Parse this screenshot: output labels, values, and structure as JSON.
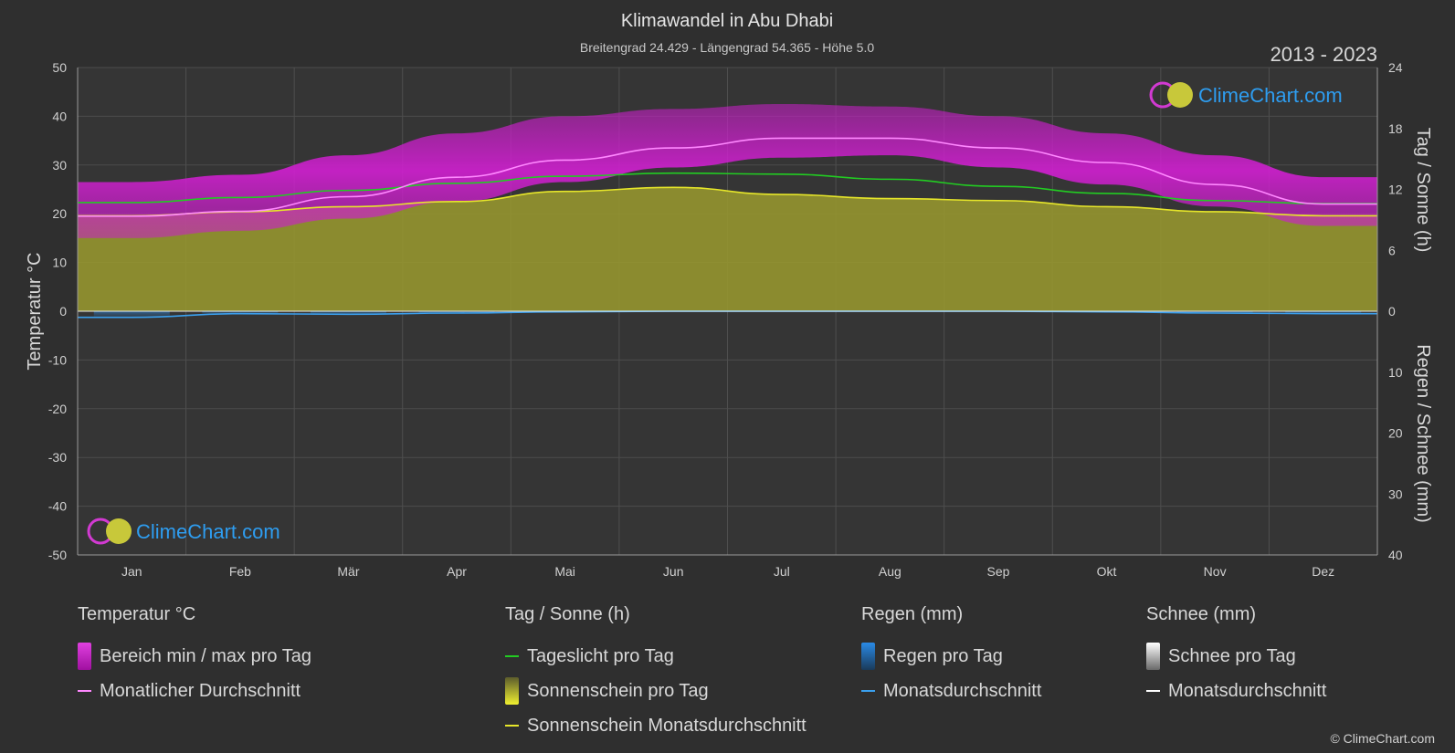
{
  "header": {
    "title": "Klimawandel in Abu Dhabi",
    "subtitle": "Breitengrad 24.429 - Längengrad 54.365 - Höhe 5.0",
    "years": "2013 - 2023"
  },
  "watermark": {
    "brand": "ClimeChart.com"
  },
  "copyright": "© ClimeChart.com",
  "colors": {
    "background": "#2f2f2f",
    "plot_background": "#353535",
    "temp_range": "#d21fd2",
    "temp_avg": "#ff88ff",
    "daylight": "#22cc22",
    "sunshine_fill": "#9a9a2e",
    "sunshine_avg": "#e6e62a",
    "rain": "#1e6fbf",
    "rain_avg": "#3aa0ee",
    "snow_avg": "#ffffff",
    "brand_text": "#2e9df0"
  },
  "chart_data": {
    "type": "line",
    "categories": [
      "Jan",
      "Feb",
      "Mär",
      "Apr",
      "Mai",
      "Jun",
      "Jul",
      "Aug",
      "Sep",
      "Okt",
      "Nov",
      "Dez"
    ],
    "axes": {
      "left": {
        "label": "Temperatur °C",
        "ylim": [
          -50,
          50
        ],
        "ticks": [
          50,
          40,
          30,
          20,
          10,
          0,
          -10,
          -20,
          -30,
          -40,
          -50
        ]
      },
      "right_top": {
        "label": "Tag / Sonne (h)",
        "ylim": [
          0,
          24
        ],
        "ticks": [
          24,
          18,
          12,
          6,
          0
        ]
      },
      "right_bottom": {
        "label": "Regen / Schnee (mm)",
        "ylim": [
          0,
          40
        ],
        "ticks": [
          0,
          10,
          20,
          30,
          40
        ]
      }
    },
    "grid": true,
    "series": [
      {
        "name": "Monatlicher Durchschnitt",
        "axis": "temperature",
        "values": [
          19.5,
          20.5,
          23.5,
          27.5,
          31.0,
          33.5,
          35.5,
          35.5,
          33.5,
          30.5,
          26.0,
          22.0
        ]
      },
      {
        "name": "Bereich min / max pro Tag (min)",
        "axis": "temperature",
        "values": [
          15.0,
          16.5,
          19.0,
          22.5,
          26.5,
          29.5,
          31.5,
          32.0,
          29.5,
          26.0,
          21.5,
          17.5
        ]
      },
      {
        "name": "Bereich min / max pro Tag (max)",
        "axis": "temperature",
        "values": [
          26.5,
          28.0,
          32.0,
          36.5,
          40.0,
          41.5,
          42.5,
          42.0,
          40.0,
          36.5,
          32.0,
          27.5
        ]
      },
      {
        "name": "Tageslicht pro Tag",
        "axis": "sun",
        "values": [
          10.7,
          11.2,
          11.9,
          12.6,
          13.3,
          13.6,
          13.5,
          13.0,
          12.3,
          11.6,
          10.9,
          10.6
        ]
      },
      {
        "name": "Sonnenschein Monatsdurchschnitt",
        "axis": "sun",
        "values": [
          9.4,
          9.8,
          10.3,
          10.8,
          11.8,
          12.2,
          11.5,
          11.1,
          10.9,
          10.3,
          9.8,
          9.4
        ]
      },
      {
        "name": "Regen Monatsdurchschnitt",
        "axis": "rain",
        "values": [
          1.0,
          0.4,
          0.5,
          0.3,
          0.1,
          0.0,
          0.0,
          0.0,
          0.0,
          0.1,
          0.3,
          0.4
        ]
      },
      {
        "name": "Schnee Monatsdurchschnitt",
        "axis": "rain",
        "values": [
          0,
          0,
          0,
          0,
          0,
          0,
          0,
          0,
          0,
          0,
          0,
          0
        ]
      }
    ]
  },
  "legend": {
    "groups": [
      {
        "title": "Temperatur °C",
        "items": [
          {
            "label": "Bereich min / max pro Tag",
            "kind": "box"
          },
          {
            "label": "Monatlicher Durchschnitt",
            "kind": "line"
          }
        ]
      },
      {
        "title": "Tag / Sonne (h)",
        "items": [
          {
            "label": "Tageslicht pro Tag",
            "kind": "line"
          },
          {
            "label": "Sonnenschein pro Tag",
            "kind": "box"
          },
          {
            "label": "Sonnenschein Monatsdurchschnitt",
            "kind": "line"
          }
        ]
      },
      {
        "title": "Regen (mm)",
        "items": [
          {
            "label": "Regen pro Tag",
            "kind": "box"
          },
          {
            "label": "Monatsdurchschnitt",
            "kind": "line"
          }
        ]
      },
      {
        "title": "Schnee (mm)",
        "items": [
          {
            "label": "Schnee pro Tag",
            "kind": "box"
          },
          {
            "label": "Monatsdurchschnitt",
            "kind": "line"
          }
        ]
      }
    ]
  }
}
